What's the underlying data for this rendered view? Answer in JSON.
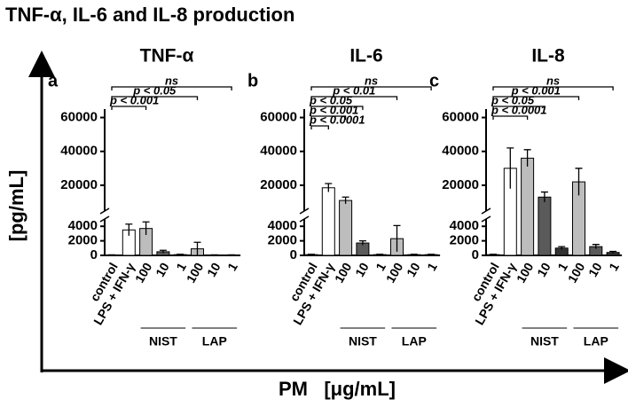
{
  "title": "TNF-α, IL-6 and IL-8 production",
  "y_label": "[pg/mL]",
  "x_label": "PM   [μg/mL]",
  "chart_data": [
    {
      "type": "bar",
      "panel": "a",
      "title": "TNF-α",
      "categories": [
        "control",
        "LPS + IFN-γ",
        "100",
        "10",
        "1",
        "100",
        "10",
        "1"
      ],
      "values": [
        50,
        3500,
        3700,
        500,
        100,
        900,
        50,
        50
      ],
      "errors": [
        30,
        800,
        900,
        200,
        50,
        900,
        30,
        30
      ],
      "colors": [
        "#ffffff",
        "#ffffff",
        "#bdbdbd",
        "#5a5a5a",
        "#333333",
        "#bdbdbd",
        "#5a5a5a",
        "#333333"
      ],
      "ylim": [
        0,
        65000
      ],
      "ybreak": [
        5000,
        10000
      ],
      "yticks": [
        0,
        2000,
        4000,
        20000,
        40000,
        60000
      ],
      "groups": [
        {
          "name": "NIST",
          "from": 2,
          "to": 4
        },
        {
          "name": "LAP",
          "from": 5,
          "to": 7
        }
      ],
      "annotations": [
        {
          "text": "ns",
          "from": 0,
          "to": 7
        },
        {
          "text": "p < 0.05",
          "from": 0,
          "to": 5
        },
        {
          "text": "p < 0.001",
          "from": 0,
          "to": 2
        }
      ]
    },
    {
      "type": "bar",
      "panel": "b",
      "title": "IL-6",
      "categories": [
        "control",
        "LPS + IFN-γ",
        "100",
        "10",
        "1",
        "100",
        "10",
        "1"
      ],
      "values": [
        100,
        18500,
        11000,
        1700,
        100,
        2300,
        100,
        100
      ],
      "errors": [
        50,
        2500,
        2000,
        300,
        50,
        1800,
        50,
        50
      ],
      "colors": [
        "#ffffff",
        "#ffffff",
        "#bdbdbd",
        "#5a5a5a",
        "#333333",
        "#bdbdbd",
        "#5a5a5a",
        "#333333"
      ],
      "ylim": [
        0,
        65000
      ],
      "ybreak": [
        5000,
        10000
      ],
      "yticks": [
        0,
        2000,
        4000,
        20000,
        40000,
        60000
      ],
      "groups": [
        {
          "name": "NIST",
          "from": 2,
          "to": 4
        },
        {
          "name": "LAP",
          "from": 5,
          "to": 7
        }
      ],
      "annotations": [
        {
          "text": "ns",
          "from": 0,
          "to": 7
        },
        {
          "text": "p < 0.01",
          "from": 0,
          "to": 5
        },
        {
          "text": "p < 0.05",
          "from": 0,
          "to": 3
        },
        {
          "text": "p < 0.001",
          "from": 0,
          "to": 2
        },
        {
          "text": "p < 0.0001",
          "from": 0,
          "to": 1
        }
      ]
    },
    {
      "type": "bar",
      "panel": "c",
      "title": "IL-8",
      "categories": [
        "control",
        "LPS + IFN-γ",
        "100",
        "10",
        "1",
        "100",
        "10",
        "1"
      ],
      "values": [
        100,
        30000,
        36000,
        13000,
        1000,
        22000,
        1200,
        400
      ],
      "errors": [
        50,
        12000,
        5000,
        3000,
        200,
        8000,
        300,
        150
      ],
      "colors": [
        "#ffffff",
        "#ffffff",
        "#bdbdbd",
        "#5a5a5a",
        "#333333",
        "#bdbdbd",
        "#5a5a5a",
        "#333333"
      ],
      "ylim": [
        0,
        65000
      ],
      "ybreak": [
        5000,
        10000
      ],
      "yticks": [
        0,
        2000,
        4000,
        20000,
        40000,
        60000
      ],
      "groups": [
        {
          "name": "NIST",
          "from": 2,
          "to": 4
        },
        {
          "name": "LAP",
          "from": 5,
          "to": 7
        }
      ],
      "annotations": [
        {
          "text": "ns",
          "from": 0,
          "to": 7
        },
        {
          "text": "p < 0.001",
          "from": 0,
          "to": 5
        },
        {
          "text": "p < 0.05",
          "from": 0,
          "to": 3
        },
        {
          "text": "p < 0.0001",
          "from": 0,
          "to": 2
        }
      ]
    }
  ]
}
